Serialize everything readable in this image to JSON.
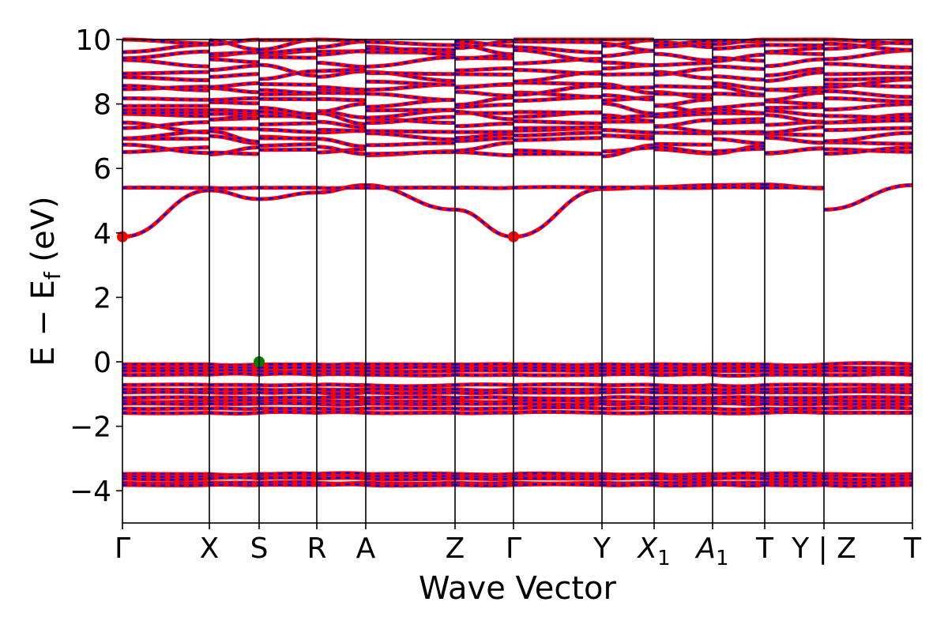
{
  "chart_data": {
    "type": "line",
    "xlabel": "Wave Vector",
    "ylabel_parts": {
      "base": "E − E",
      "subscript": "f",
      "unit": " (eV)"
    },
    "ylim": [
      -5,
      10
    ],
    "yticks": [
      -4,
      -2,
      0,
      2,
      4,
      6,
      8,
      10
    ],
    "grid": false,
    "kpath": {
      "segments": [
        [
          "Γ",
          "X"
        ],
        [
          "X",
          "S"
        ],
        [
          "S",
          "R"
        ],
        [
          "R",
          "A"
        ],
        [
          "A",
          "Z"
        ],
        [
          "Z",
          "Γ"
        ],
        [
          "Γ",
          "Y"
        ],
        [
          "Y",
          "X1"
        ],
        [
          "X1",
          "A1"
        ],
        [
          "A1",
          "T"
        ],
        [
          "T",
          "Y"
        ],
        [
          "Z",
          "T"
        ]
      ],
      "ticks": [
        {
          "label": "Γ",
          "sub": ""
        },
        {
          "label": "X",
          "sub": ""
        },
        {
          "label": "S",
          "sub": ""
        },
        {
          "label": "R",
          "sub": ""
        },
        {
          "label": "A",
          "sub": ""
        },
        {
          "label": "Z",
          "sub": ""
        },
        {
          "label": "Γ",
          "sub": ""
        },
        {
          "label": "Y",
          "sub": ""
        },
        {
          "label": "X",
          "sub": "1",
          "italic": true
        },
        {
          "label": "A",
          "sub": "1",
          "italic": true
        },
        {
          "label": "T",
          "sub": ""
        },
        {
          "label": "Y | Z",
          "sub": ""
        },
        {
          "label": "T",
          "sub": ""
        }
      ]
    },
    "series": [
      {
        "color": "#ff0000",
        "style": "solid"
      },
      {
        "color": "#0000ff",
        "style": "dashed"
      }
    ],
    "markers": [
      {
        "label": "CBM",
        "tick_index": 0,
        "energy": 3.88,
        "color": "#ff0000"
      },
      {
        "label": "CBM",
        "tick_index": 6,
        "energy": 3.88,
        "color": "#ff0000"
      },
      {
        "label": "VBM",
        "tick_index": 2,
        "energy": 0.0,
        "color": "#008000"
      }
    ],
    "bands": {
      "valence_groups": [
        [
          -0.08,
          -0.18,
          -0.28,
          -0.4,
          -0.72,
          -0.85,
          -0.95,
          -1.12,
          -1.22,
          -1.3,
          -1.45,
          -1.58
        ],
        [
          -3.48,
          -3.55,
          -3.62,
          -3.75,
          -3.82
        ]
      ],
      "conduction_lowest": [
        {
          "seg": 0,
          "e0": 3.88,
          "e1": 5.32
        },
        {
          "seg": 1,
          "e0": 5.32,
          "e1": 5.05
        },
        {
          "seg": 2,
          "e0": 5.05,
          "e1": 5.25
        },
        {
          "seg": 3,
          "e0": 5.25,
          "e1": 5.48
        },
        {
          "seg": 4,
          "e0": 5.48,
          "e1": 4.72
        },
        {
          "seg": 5,
          "e0": 4.72,
          "e1": 3.88
        },
        {
          "seg": 6,
          "e0": 3.88,
          "e1": 5.36
        },
        {
          "seg": 7,
          "e0": 5.36,
          "e1": 5.42
        },
        {
          "seg": 8,
          "e0": 5.42,
          "e1": 5.48
        },
        {
          "seg": 9,
          "e0": 5.48,
          "e1": 5.5
        },
        {
          "seg": 10,
          "e0": 5.5,
          "e1": 5.38
        },
        {
          "seg": 11,
          "e0": 4.72,
          "e1": 5.48
        }
      ],
      "conduction_flat": [
        5.4
      ],
      "upper_bands": [
        6.55,
        6.62,
        6.85,
        7.0,
        7.25,
        7.4,
        7.55,
        7.7,
        7.85,
        8.05,
        8.25,
        8.45,
        8.6,
        8.85,
        9.05,
        9.3,
        9.5,
        9.7,
        9.85,
        9.97
      ]
    }
  }
}
